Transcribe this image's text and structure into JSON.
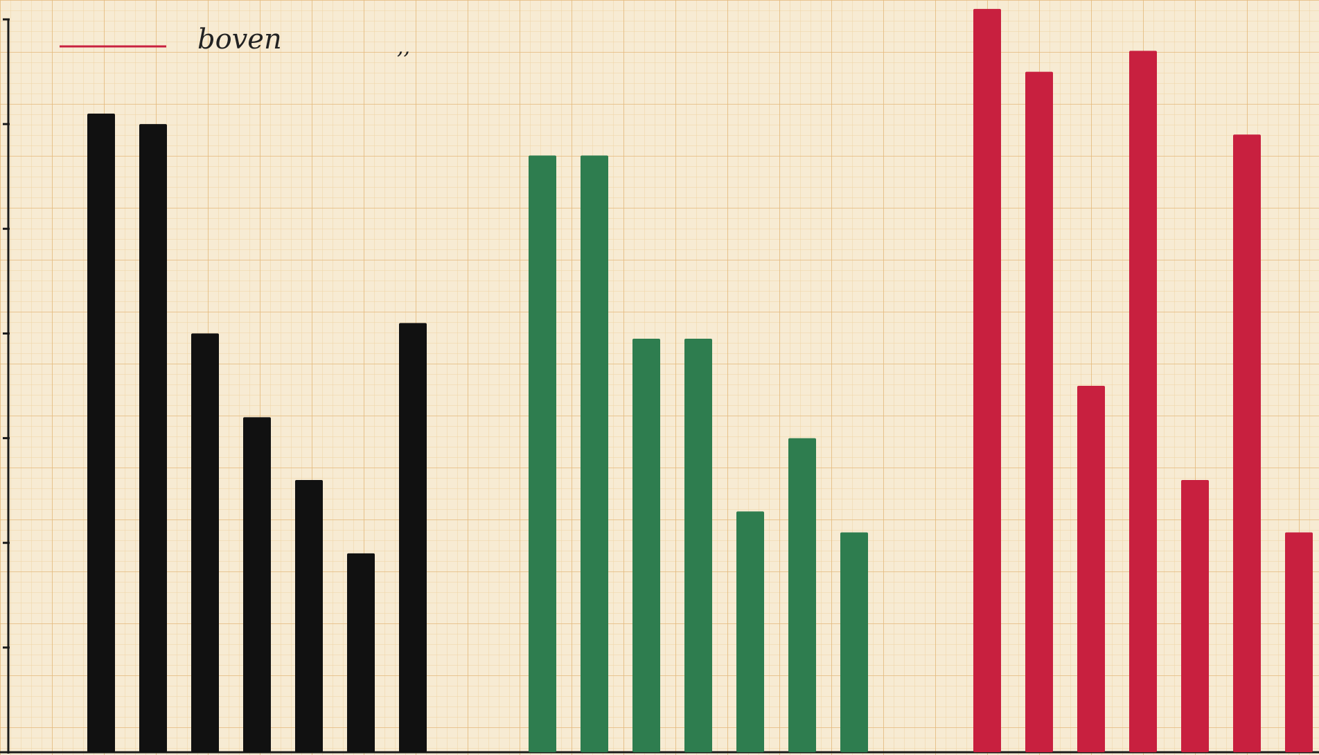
{
  "chart_data": {
    "type": "bar",
    "ylim": [
      0,
      7
    ],
    "grid": true,
    "legend": [
      {
        "label": "boven",
        "color": "#c8203f",
        "position": "top-left"
      },
      {
        "label": ",,",
        "position": "top-left"
      }
    ],
    "series": [
      {
        "color": "#111111",
        "values": [
          6.1,
          6.0,
          4.0,
          3.2,
          2.6,
          1.9,
          4.1
        ]
      },
      {
        "color": "#2e7d4f",
        "values": [
          5.7,
          5.7,
          3.95,
          3.95,
          2.3,
          3.0,
          2.1
        ]
      },
      {
        "color": "#c8203f",
        "values": [
          7.1,
          6.5,
          3.5,
          6.7,
          2.6,
          5.9,
          2.1
        ]
      }
    ]
  }
}
